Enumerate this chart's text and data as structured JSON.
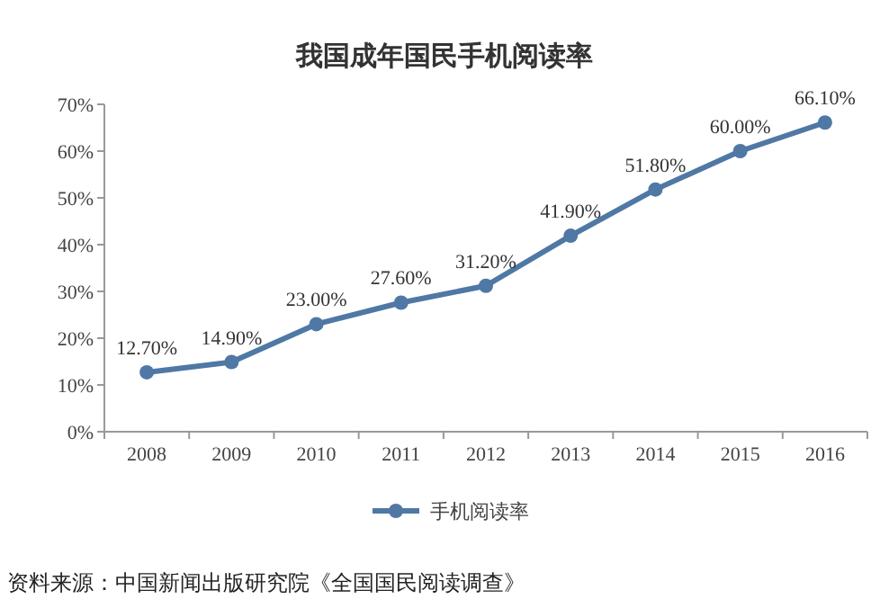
{
  "chart_data": {
    "type": "line",
    "title": "我国成年国民手机阅读率",
    "categories": [
      "2008",
      "2009",
      "2010",
      "2011",
      "2012",
      "2013",
      "2014",
      "2015",
      "2016"
    ],
    "series": [
      {
        "name": "手机阅读率",
        "color": "#4f78a5",
        "values": [
          12.7,
          14.9,
          23.0,
          27.6,
          31.2,
          41.9,
          51.8,
          60.0,
          66.1
        ],
        "value_labels": [
          "12.70%",
          "14.90%",
          "23.00%",
          "27.60%",
          "31.20%",
          "41.90%",
          "51.80%",
          "60.00%",
          "66.10%"
        ]
      }
    ],
    "ylim": [
      0,
      70
    ],
    "yticks": [
      {
        "value": 0,
        "label": "0%"
      },
      {
        "value": 10,
        "label": "10%"
      },
      {
        "value": 20,
        "label": "20%"
      },
      {
        "value": 30,
        "label": "30%"
      },
      {
        "value": 40,
        "label": "40%"
      },
      {
        "value": 50,
        "label": "50%"
      },
      {
        "value": 60,
        "label": "60%"
      },
      {
        "value": 70,
        "label": "70%"
      }
    ],
    "marker": "circle",
    "line_style": "solid",
    "legend": "bottom",
    "grid": false,
    "annotations": [
      "资料来源：中国新闻出版研究院《全国国民阅读调查》"
    ]
  }
}
